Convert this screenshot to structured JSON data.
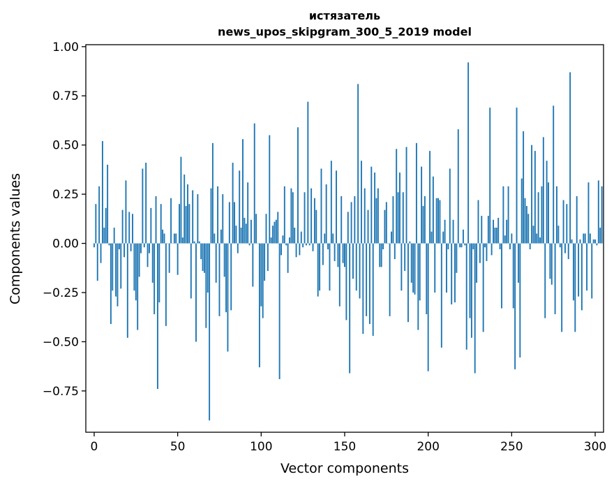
{
  "chart_data": {
    "type": "bar",
    "title": "истязатель",
    "subtitle": "news_upos_skipgram_300_5_2019 model",
    "xlabel": "Vector components",
    "ylabel": "Components values",
    "xlim": [
      -5,
      305
    ],
    "ylim": [
      -0.96,
      1.01
    ],
    "xticks": [
      0,
      50,
      100,
      150,
      200,
      250,
      300
    ],
    "yticks": [
      -0.75,
      -0.5,
      -0.25,
      0.0,
      0.25,
      0.5,
      0.75,
      1.0
    ],
    "xtick_labels": [
      "0",
      "50",
      "100",
      "150",
      "200",
      "250",
      "300"
    ],
    "ytick_labels": [
      "−0.75",
      "−0.50",
      "−0.25",
      "0.00",
      "0.25",
      "0.50",
      "0.75",
      "1.00"
    ],
    "grid": false,
    "legend": "none",
    "color": "#1f77b4",
    "values": [
      -0.02,
      0.2,
      -0.19,
      0.29,
      -0.1,
      0.52,
      0.08,
      0.18,
      0.4,
      -0.01,
      -0.41,
      -0.24,
      0.08,
      -0.27,
      -0.32,
      -0.03,
      -0.23,
      0.17,
      -0.07,
      0.32,
      -0.48,
      0.16,
      -0.04,
      0.15,
      -0.24,
      -0.29,
      -0.44,
      -0.17,
      -0.05,
      0.38,
      -0.02,
      0.41,
      -0.12,
      -0.05,
      0.18,
      -0.2,
      -0.36,
      0.24,
      -0.74,
      -0.3,
      0.2,
      0.07,
      0.05,
      -0.42,
      0.0,
      -0.15,
      0.23,
      0.0,
      0.05,
      0.05,
      -0.16,
      0.2,
      0.44,
      0.03,
      0.35,
      0.19,
      0.3,
      0.2,
      -0.28,
      0.27,
      0.01,
      -0.5,
      0.25,
      0.01,
      -0.08,
      -0.14,
      -0.15,
      -0.43,
      -0.25,
      -0.9,
      0.28,
      0.51,
      0.05,
      -0.2,
      0.29,
      -0.37,
      0.07,
      0.25,
      -0.17,
      -0.35,
      -0.55,
      0.21,
      -0.34,
      0.41,
      0.21,
      0.09,
      -0.05,
      0.37,
      0.08,
      0.53,
      0.13,
      0.1,
      0.31,
      -0.01,
      0.12,
      -0.22,
      0.61,
      0.15,
      0.0,
      -0.63,
      -0.32,
      -0.38,
      -0.19,
      0.15,
      -0.14,
      0.55,
      0.03,
      0.09,
      0.11,
      0.12,
      0.16,
      -0.69,
      -0.06,
      0.04,
      0.29,
      -0.01,
      -0.15,
      0.03,
      0.28,
      0.26,
      0.08,
      -0.07,
      0.59,
      -0.06,
      0.06,
      -0.02,
      0.26,
      -0.01,
      0.72,
      -0.01,
      0.28,
      -0.04,
      0.23,
      0.17,
      -0.27,
      -0.24,
      0.38,
      -0.11,
      0.05,
      0.3,
      -0.03,
      -0.24,
      0.42,
      0.05,
      -0.09,
      0.37,
      -0.12,
      -0.32,
      0.24,
      -0.1,
      -0.12,
      -0.39,
      0.16,
      -0.66,
      0.21,
      -0.18,
      0.24,
      -0.24,
      0.81,
      -0.28,
      0.42,
      -0.46,
      0.28,
      -0.37,
      0.17,
      -0.41,
      0.39,
      -0.47,
      0.36,
      0.23,
      0.28,
      -0.12,
      -0.12,
      -0.03,
      0.17,
      0.21,
      0.0,
      -0.37,
      0.06,
      0.24,
      -0.08,
      0.48,
      0.26,
      0.36,
      -0.24,
      0.26,
      -0.14,
      0.49,
      -0.4,
      0.01,
      -0.2,
      -0.25,
      -0.26,
      0.51,
      -0.44,
      -0.29,
      0.39,
      0.19,
      0.24,
      -0.36,
      -0.65,
      0.47,
      0.06,
      0.34,
      -0.25,
      0.23,
      0.23,
      0.22,
      -0.53,
      0.06,
      0.12,
      -0.25,
      -0.03,
      0.38,
      -0.31,
      0.12,
      -0.3,
      -0.15,
      0.58,
      -0.02,
      -0.02,
      0.07,
      -0.01,
      -0.54,
      0.92,
      -0.38,
      -0.48,
      -0.03,
      -0.66,
      -0.2,
      0.22,
      -0.1,
      0.14,
      -0.45,
      -0.02,
      -0.09,
      0.14,
      0.69,
      -0.06,
      0.12,
      0.08,
      0.08,
      0.13,
      -0.03,
      -0.33,
      0.29,
      0.04,
      0.12,
      0.29,
      -0.03,
      0.05,
      -0.33,
      -0.64,
      0.69,
      -0.2,
      -0.58,
      0.33,
      0.57,
      0.23,
      0.19,
      0.15,
      -0.03,
      0.5,
      0.09,
      0.47,
      0.05,
      0.26,
      0.03,
      0.29,
      0.54,
      -0.38,
      0.42,
      0.31,
      -0.18,
      -0.21,
      0.7,
      -0.36,
      0.29,
      0.09,
      -0.02,
      -0.45,
      0.22,
      -0.05,
      0.2,
      -0.08,
      0.87,
      0.02,
      -0.29,
      -0.45,
      0.24,
      -0.27,
      0.02,
      -0.34,
      0.05,
      0.05,
      -0.24,
      0.31,
      0.05,
      -0.28,
      0.02,
      0.02,
      -0.01,
      0.32,
      0.08,
      0.29
    ]
  }
}
